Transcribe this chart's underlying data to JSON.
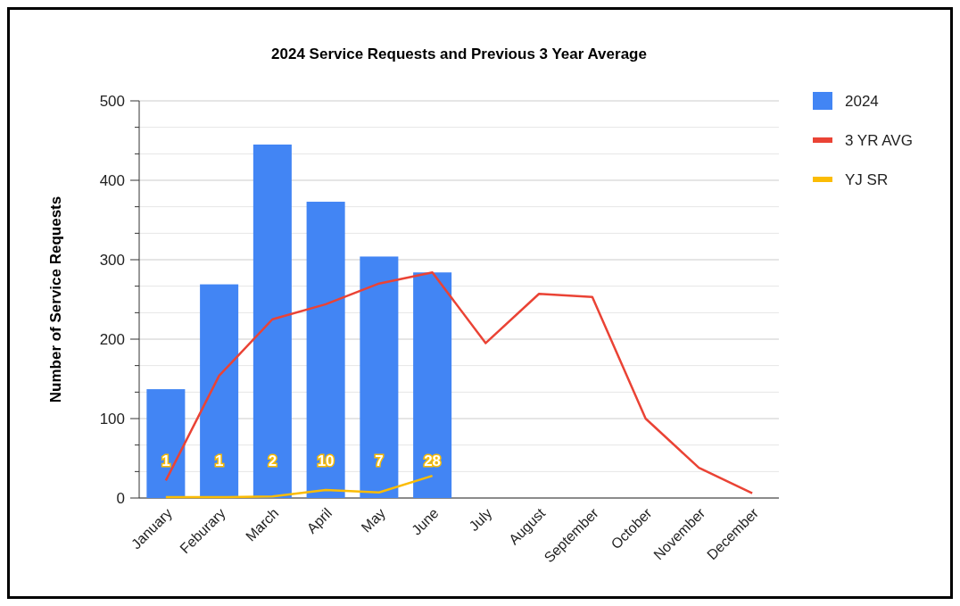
{
  "chart_data": {
    "type": "bar",
    "title": "2024 Service Requests and Previous 3 Year Average",
    "ylabel": "Number of Service Requests",
    "categories": [
      "January",
      "Feburary",
      "March",
      "April",
      "May",
      "June",
      "July",
      "August",
      "September",
      "October",
      "November",
      "December"
    ],
    "series": [
      {
        "name": "2024",
        "color": "#4285f4",
        "values": [
          137,
          269,
          445,
          373,
          304,
          284,
          null,
          null,
          null,
          null,
          null,
          null
        ]
      },
      {
        "name": "3 YR AVG",
        "type": "line",
        "color": "#ea4335",
        "values": [
          22,
          154,
          225,
          244,
          270,
          284,
          195,
          257,
          253,
          100,
          38,
          6
        ]
      },
      {
        "name": "YJ SR",
        "type": "line",
        "color": "#fbbc04",
        "values": [
          1,
          1,
          2,
          10,
          7,
          28,
          null,
          null,
          null,
          null,
          null,
          null
        ],
        "value_labels": [
          "1",
          "1",
          "2",
          "10",
          "7",
          "28",
          null,
          null,
          null,
          null,
          null,
          null
        ]
      }
    ],
    "ylim": [
      0,
      500
    ],
    "yticks": [
      0,
      {
        "value": 33.3,
        "label": null
      },
      {
        "value": 66.7,
        "label": null
      },
      100,
      {
        "value": 133.3,
        "label": null
      },
      {
        "value": 166.7,
        "label": null
      },
      200,
      {
        "value": 233.3,
        "label": null
      },
      {
        "value": 266.7,
        "label": null
      },
      300,
      {
        "value": 333.3,
        "label": null
      },
      {
        "value": 366.7,
        "label": null
      },
      400,
      {
        "value": 433.3,
        "label": null
      },
      {
        "value": 466.7,
        "label": null
      },
      500
    ],
    "grid": "y",
    "legend": "top right",
    "line_style": "solid",
    "marker": "none"
  }
}
